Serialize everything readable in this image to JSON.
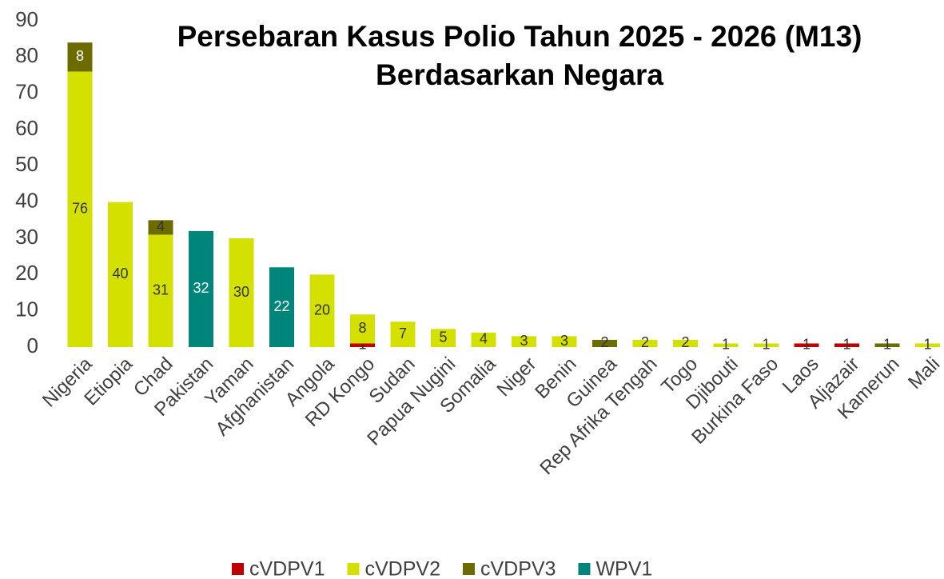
{
  "chart_data": {
    "type": "stacked_bar",
    "title": [
      "Persebaran Kasus Polio Tahun 2025 - 2026 (M13)",
      "Berdasarkan Negara"
    ],
    "categories": [
      "Nigeria",
      "Etiopia",
      "Chad",
      "Pakistan",
      "Yaman",
      "Afghanistan",
      "Angola",
      "RD Kongo",
      "Sudan",
      "Papua Nugini",
      "Somalia",
      "Niger",
      "Benin",
      "Guinea",
      "Rep Afrika Tengah",
      "Togo",
      "Djibouti",
      "Burkina Faso",
      "Laos",
      "Aljazair",
      "Kamerun",
      "Mali"
    ],
    "series": [
      {
        "name": "cVDPV1",
        "color": "#c00000",
        "values": [
          null,
          null,
          null,
          null,
          null,
          null,
          null,
          1,
          null,
          null,
          null,
          null,
          null,
          null,
          null,
          null,
          null,
          null,
          1,
          1,
          null,
          null
        ]
      },
      {
        "name": "cVDPV2",
        "color": "#d4e000",
        "values": [
          76,
          40,
          31,
          null,
          30,
          null,
          20,
          8,
          7,
          5,
          4,
          3,
          3,
          null,
          2,
          2,
          1,
          1,
          null,
          null,
          null,
          1
        ]
      },
      {
        "name": "cVDPV3",
        "color": "#6b6b00",
        "values": [
          8,
          null,
          4,
          null,
          null,
          null,
          null,
          null,
          null,
          null,
          null,
          null,
          null,
          2,
          null,
          null,
          null,
          null,
          null,
          null,
          1,
          null
        ]
      },
      {
        "name": "WPV1",
        "color": "#00857a",
        "values": [
          null,
          null,
          null,
          32,
          null,
          22,
          null,
          null,
          null,
          null,
          null,
          null,
          null,
          null,
          null,
          null,
          null,
          null,
          null,
          null,
          null,
          null
        ]
      }
    ],
    "ylim": [
      0,
      90
    ],
    "yticks": [
      0,
      10,
      20,
      30,
      40,
      50,
      60,
      70,
      80,
      90
    ],
    "grid": false,
    "legend": "bottom"
  }
}
